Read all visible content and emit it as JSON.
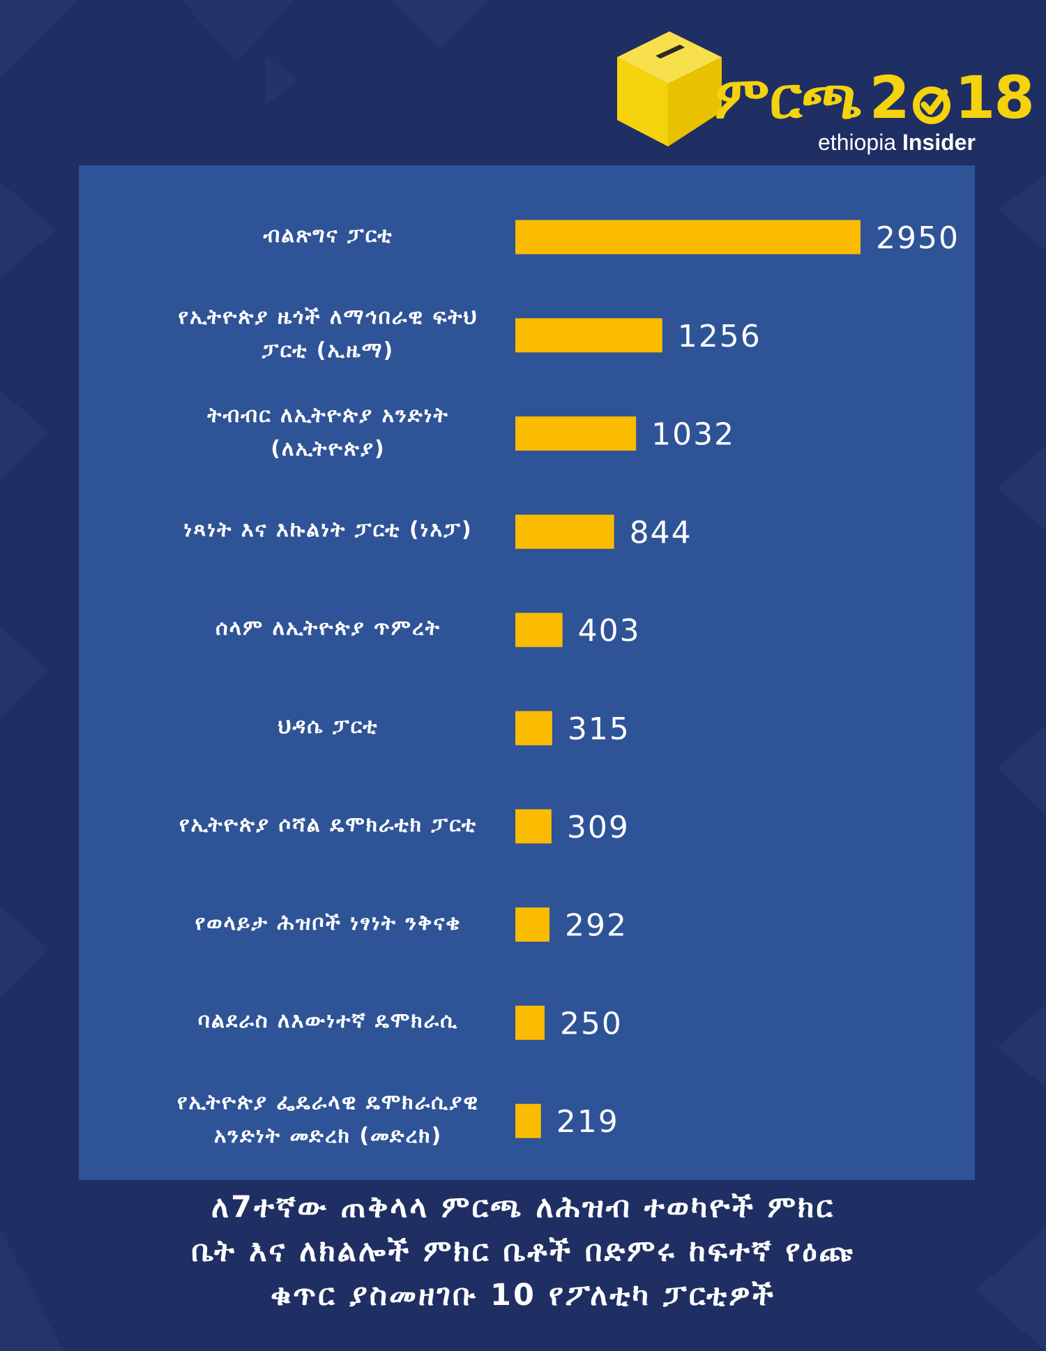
{
  "logo": {
    "word": "ምርጫ",
    "year_prefix": "2",
    "year_suffix": "18",
    "sub_light": "ethiopia ",
    "sub_bold": "Insider"
  },
  "colors": {
    "background": "#1f2f63",
    "panel": "#2e5397",
    "bar": "#fbbb00",
    "logo_yellow": "#f5d30c",
    "text": "#ffffff"
  },
  "chart_data": {
    "type": "bar",
    "orientation": "horizontal",
    "categories": [
      [
        "ብልጽግና ፓርቲ"
      ],
      [
        "የኢትዮጵያ ዜጎች ለማኅበራዊ ፍትህ",
        "ፓርቲ (ኢዜማ)"
      ],
      [
        "ትብብር ለኢትዮጵያ አንድነት",
        "(ለኢትዮጵያ)"
      ],
      [
        "ነጻነት እና እኩልነት ፓርቲ (ነእፓ)"
      ],
      [
        "ሰላም ለኢትዮጵያ ጥምረት"
      ],
      [
        "ህዳሴ ፓርቲ"
      ],
      [
        "የኢትዮጵያ ሶሻል ዴሞክራቲክ ፓርቲ"
      ],
      [
        "የወላይታ ሕዝቦች ነፃነት ንቅናቄ"
      ],
      [
        "ባልደራስ ለእውነተኛ ዴሞክራሲ"
      ],
      [
        "የኢትዮጵያ ፌዴራላዊ ዴሞክራሲያዊ",
        "አንድነት መድረክ (መድረክ)"
      ]
    ],
    "values": [
      2950,
      1256,
      1032,
      844,
      403,
      315,
      309,
      292,
      250,
      219
    ],
    "value_labels": [
      "2950",
      "1256",
      "1032",
      "844",
      "403",
      "315",
      "309",
      "292",
      "250",
      "219"
    ],
    "xlim": [
      0,
      2950
    ],
    "grid": false
  },
  "caption": [
    "ለ7ተኛው ጠቅላላ ምርጫ ለሕዝብ ተወካዮች ምክር",
    "ቤት እና ለክልሎች ምክር ቤቶች በድምሩ ከፍተኛ የዕጩ",
    "ቁጥር ያስመዘገቡ 10 የፖለቲካ ፓርቲዎች"
  ]
}
